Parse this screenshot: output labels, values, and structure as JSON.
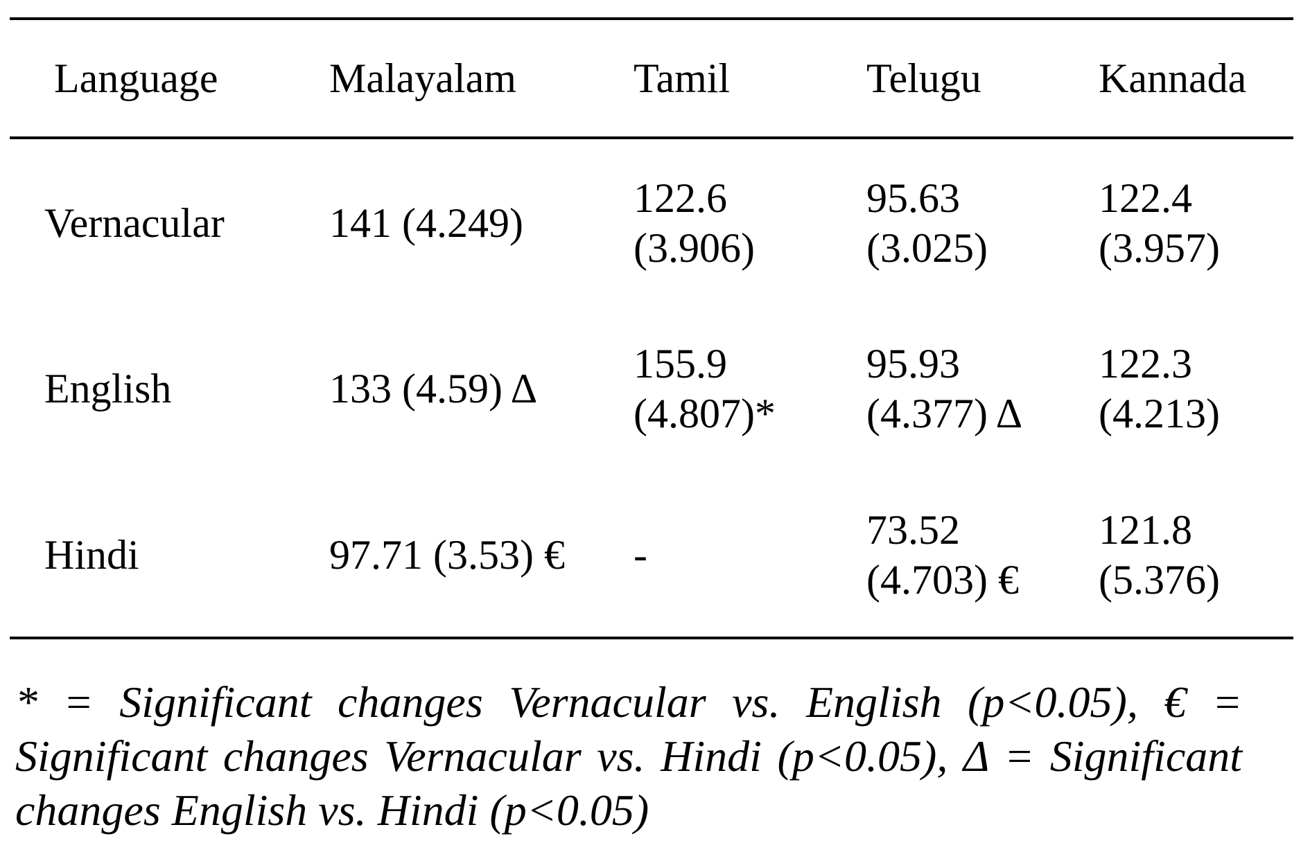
{
  "table": {
    "headers": [
      "Language",
      "Malayalam",
      "Tamil",
      "Telugu",
      "Kannada"
    ],
    "rows": [
      {
        "label": "Vernacular",
        "malayalam": "141 (4.249)",
        "tamil": [
          "122.6",
          "(3.906)"
        ],
        "telugu": [
          "95.63",
          "(3.025)"
        ],
        "kannada": [
          "122.4",
          "(3.957)"
        ]
      },
      {
        "label": "English",
        "malayalam": "133 (4.59) Δ",
        "tamil": [
          "155.9",
          "(4.807)*"
        ],
        "telugu": [
          "95.93",
          "(4.377) Δ"
        ],
        "kannada": [
          "122.3",
          "(4.213)"
        ]
      },
      {
        "label": "Hindi",
        "malayalam": "97.71 (3.53) €",
        "tamil": "-",
        "telugu": [
          "73.52",
          "(4.703) €"
        ],
        "kannada": [
          "121.8",
          "(5.376)"
        ]
      }
    ]
  },
  "footnote": "* = Significant changes Vernacular vs. English (p<0.05), € = Significant changes Vernacular vs. Hindi (p<0.05), Δ = Significant changes English vs. Hindi (p<0.05)"
}
